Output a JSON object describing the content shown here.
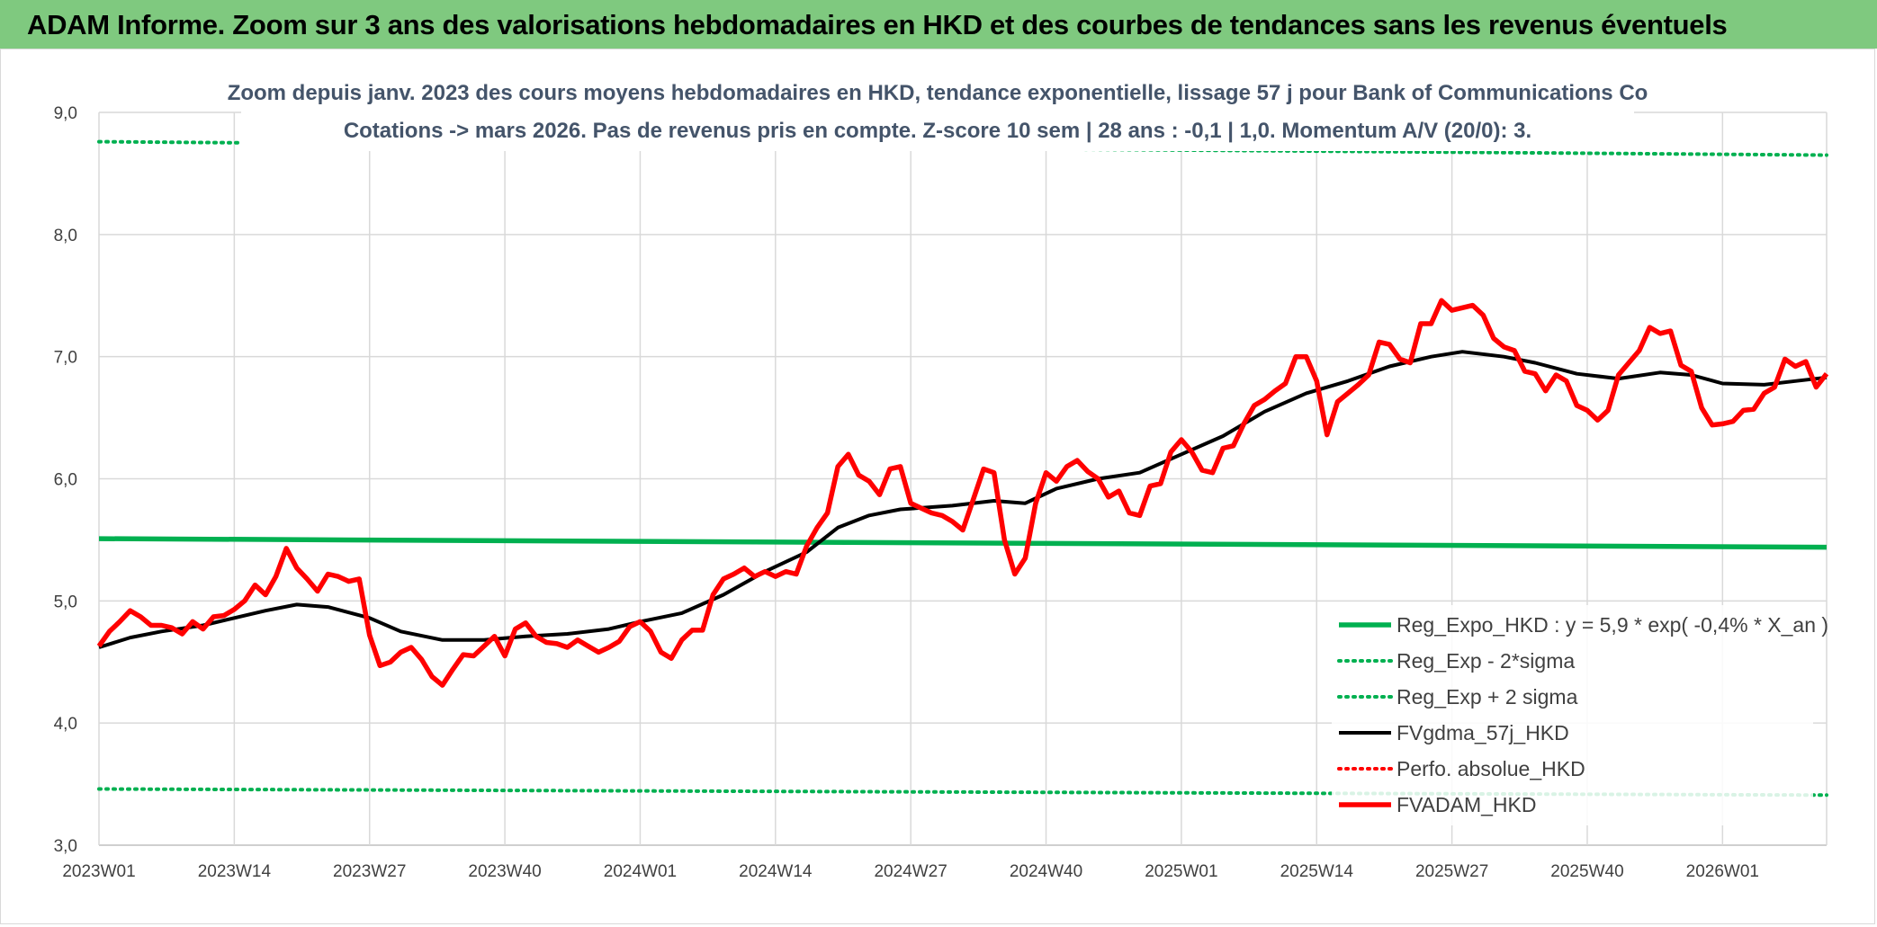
{
  "header": {
    "title": "ADAM Informe. Zoom sur 3 ans des valorisations hebdomadaires en HKD et des courbes de tendances sans les revenus éventuels"
  },
  "chart_data": {
    "type": "line",
    "title": "Zoom depuis janv. 2023 des cours moyens hebdomadaires en HKD, tendance exponentielle, lissage 57 j pour Bank of Communications Co",
    "subtitle": "Cotations -> mars 2026. Pas de revenus pris en compte. Z-score 10 sem | 28 ans : -0,1 | 1,0. Momentum A/V (20/0): 3.",
    "xlabel": "",
    "ylabel": "",
    "ylim": [
      3.0,
      9.0
    ],
    "y_ticks": [
      "3,0",
      "4,0",
      "5,0",
      "6,0",
      "7,0",
      "8,0",
      "9,0"
    ],
    "x_tick_labels": [
      "2023W01",
      "2023W14",
      "2023W27",
      "2023W40",
      "2024W01",
      "2024W14",
      "2024W27",
      "2024W40",
      "2025W01",
      "2025W14",
      "2025W27",
      "2025W40",
      "2026W01"
    ],
    "x_range_weeks": [
      0,
      166
    ],
    "grid": true,
    "legend_position": "bottom-right",
    "series": [
      {
        "name": "Reg_Expo_HKD : y = 5,9 * exp( -0,4% *  X_an )",
        "color": "#00b050",
        "style": "solid-thick",
        "points": [
          [
            0,
            5.51
          ],
          [
            166,
            5.44
          ]
        ]
      },
      {
        "name": "Reg_Exp - 2*sigma",
        "color": "#00b050",
        "style": "dotted",
        "points": [
          [
            0,
            3.46
          ],
          [
            166,
            3.41
          ]
        ]
      },
      {
        "name": "Reg_Exp + 2 sigma",
        "color": "#00b050",
        "style": "dotted",
        "points": [
          [
            0,
            8.76
          ],
          [
            166,
            8.65
          ]
        ]
      },
      {
        "name": "FVgdma_57j_HKD",
        "color": "#000000",
        "style": "solid",
        "points": [
          [
            0,
            4.62
          ],
          [
            3,
            4.7
          ],
          [
            6,
            4.75
          ],
          [
            10,
            4.8
          ],
          [
            13,
            4.86
          ],
          [
            16,
            4.92
          ],
          [
            19,
            4.97
          ],
          [
            22,
            4.95
          ],
          [
            26,
            4.86
          ],
          [
            29,
            4.75
          ],
          [
            33,
            4.68
          ],
          [
            37,
            4.68
          ],
          [
            41,
            4.71
          ],
          [
            45,
            4.73
          ],
          [
            49,
            4.77
          ],
          [
            52,
            4.83
          ],
          [
            56,
            4.9
          ],
          [
            60,
            5.05
          ],
          [
            64,
            5.24
          ],
          [
            68,
            5.4
          ],
          [
            71,
            5.6
          ],
          [
            74,
            5.7
          ],
          [
            77,
            5.75
          ],
          [
            82,
            5.78
          ],
          [
            86,
            5.82
          ],
          [
            89,
            5.8
          ],
          [
            92,
            5.92
          ],
          [
            96,
            6.0
          ],
          [
            100,
            6.05
          ],
          [
            104,
            6.2
          ],
          [
            108,
            6.35
          ],
          [
            112,
            6.55
          ],
          [
            116,
            6.7
          ],
          [
            120,
            6.8
          ],
          [
            124,
            6.92
          ],
          [
            128,
            7.0
          ],
          [
            131,
            7.04
          ],
          [
            135,
            7.0
          ],
          [
            138,
            6.95
          ],
          [
            142,
            6.86
          ],
          [
            146,
            6.82
          ],
          [
            150,
            6.87
          ],
          [
            153,
            6.85
          ],
          [
            156,
            6.78
          ],
          [
            160,
            6.77
          ],
          [
            163,
            6.8
          ],
          [
            166,
            6.83
          ]
        ]
      },
      {
        "name": "Perfo. absolue_HKD",
        "color": "#ff0000",
        "style": "dotted",
        "points": []
      },
      {
        "name": "FVADAM_HKD",
        "color": "#ff0000",
        "style": "solid-thick",
        "points": [
          [
            0,
            4.63
          ],
          [
            1,
            4.75
          ],
          [
            2,
            4.83
          ],
          [
            3,
            4.92
          ],
          [
            4,
            4.87
          ],
          [
            5,
            4.8
          ],
          [
            6,
            4.8
          ],
          [
            7,
            4.78
          ],
          [
            8,
            4.73
          ],
          [
            9,
            4.83
          ],
          [
            10,
            4.77
          ],
          [
            11,
            4.87
          ],
          [
            12,
            4.88
          ],
          [
            13,
            4.93
          ],
          [
            14,
            5.0
          ],
          [
            15,
            5.13
          ],
          [
            16,
            5.05
          ],
          [
            17,
            5.2
          ],
          [
            18,
            5.43
          ],
          [
            19,
            5.27
          ],
          [
            20,
            5.18
          ],
          [
            21,
            5.08
          ],
          [
            22,
            5.22
          ],
          [
            23,
            5.2
          ],
          [
            24,
            5.16
          ],
          [
            25,
            5.18
          ],
          [
            26,
            4.72
          ],
          [
            27,
            4.47
          ],
          [
            28,
            4.5
          ],
          [
            29,
            4.58
          ],
          [
            30,
            4.62
          ],
          [
            31,
            4.52
          ],
          [
            32,
            4.38
          ],
          [
            33,
            4.31
          ],
          [
            34,
            4.44
          ],
          [
            35,
            4.56
          ],
          [
            36,
            4.55
          ],
          [
            37,
            4.63
          ],
          [
            38,
            4.71
          ],
          [
            39,
            4.55
          ],
          [
            40,
            4.77
          ],
          [
            41,
            4.82
          ],
          [
            42,
            4.71
          ],
          [
            43,
            4.66
          ],
          [
            44,
            4.65
          ],
          [
            45,
            4.62
          ],
          [
            46,
            4.68
          ],
          [
            47,
            4.63
          ],
          [
            48,
            4.58
          ],
          [
            49,
            4.62
          ],
          [
            50,
            4.67
          ],
          [
            51,
            4.79
          ],
          [
            52,
            4.83
          ],
          [
            53,
            4.75
          ],
          [
            54,
            4.58
          ],
          [
            55,
            4.53
          ],
          [
            56,
            4.68
          ],
          [
            57,
            4.76
          ],
          [
            58,
            4.76
          ],
          [
            59,
            5.05
          ],
          [
            60,
            5.18
          ],
          [
            61,
            5.22
          ],
          [
            62,
            5.27
          ],
          [
            63,
            5.2
          ],
          [
            64,
            5.24
          ],
          [
            65,
            5.2
          ],
          [
            66,
            5.24
          ],
          [
            67,
            5.22
          ],
          [
            68,
            5.45
          ],
          [
            69,
            5.6
          ],
          [
            70,
            5.72
          ],
          [
            71,
            6.1
          ],
          [
            72,
            6.2
          ],
          [
            73,
            6.03
          ],
          [
            74,
            5.98
          ],
          [
            75,
            5.87
          ],
          [
            76,
            6.08
          ],
          [
            77,
            6.1
          ],
          [
            78,
            5.8
          ],
          [
            79,
            5.76
          ],
          [
            80,
            5.72
          ],
          [
            81,
            5.7
          ],
          [
            82,
            5.65
          ],
          [
            83,
            5.58
          ],
          [
            84,
            5.83
          ],
          [
            85,
            6.08
          ],
          [
            86,
            6.05
          ],
          [
            87,
            5.5
          ],
          [
            88,
            5.22
          ],
          [
            89,
            5.35
          ],
          [
            90,
            5.8
          ],
          [
            91,
            6.05
          ],
          [
            92,
            5.98
          ],
          [
            93,
            6.1
          ],
          [
            94,
            6.15
          ],
          [
            95,
            6.06
          ],
          [
            96,
            6.0
          ],
          [
            97,
            5.85
          ],
          [
            98,
            5.9
          ],
          [
            99,
            5.72
          ],
          [
            100,
            5.7
          ],
          [
            101,
            5.94
          ],
          [
            102,
            5.96
          ],
          [
            103,
            6.22
          ],
          [
            104,
            6.32
          ],
          [
            105,
            6.22
          ],
          [
            106,
            6.07
          ],
          [
            107,
            6.05
          ],
          [
            108,
            6.25
          ],
          [
            109,
            6.27
          ],
          [
            110,
            6.45
          ],
          [
            111,
            6.6
          ],
          [
            112,
            6.65
          ],
          [
            113,
            6.72
          ],
          [
            114,
            6.78
          ],
          [
            115,
            7.0
          ],
          [
            116,
            7.0
          ],
          [
            117,
            6.8
          ],
          [
            118,
            6.36
          ],
          [
            119,
            6.63
          ],
          [
            120,
            6.7
          ],
          [
            121,
            6.77
          ],
          [
            122,
            6.85
          ],
          [
            123,
            7.12
          ],
          [
            124,
            7.1
          ],
          [
            125,
            6.98
          ],
          [
            126,
            6.95
          ],
          [
            127,
            7.27
          ],
          [
            128,
            7.27
          ],
          [
            129,
            7.46
          ],
          [
            130,
            7.38
          ],
          [
            131,
            7.4
          ],
          [
            132,
            7.42
          ],
          [
            133,
            7.34
          ],
          [
            134,
            7.15
          ],
          [
            135,
            7.08
          ],
          [
            136,
            7.05
          ],
          [
            137,
            6.88
          ],
          [
            138,
            6.86
          ],
          [
            139,
            6.72
          ],
          [
            140,
            6.85
          ],
          [
            141,
            6.8
          ],
          [
            142,
            6.6
          ],
          [
            143,
            6.56
          ],
          [
            144,
            6.48
          ],
          [
            145,
            6.56
          ],
          [
            146,
            6.85
          ],
          [
            147,
            6.95
          ],
          [
            148,
            7.05
          ],
          [
            149,
            7.24
          ],
          [
            150,
            7.19
          ],
          [
            151,
            7.21
          ],
          [
            152,
            6.93
          ],
          [
            153,
            6.88
          ],
          [
            154,
            6.58
          ],
          [
            155,
            6.44
          ],
          [
            156,
            6.45
          ],
          [
            157,
            6.47
          ],
          [
            158,
            6.56
          ],
          [
            159,
            6.57
          ],
          [
            160,
            6.7
          ],
          [
            161,
            6.75
          ],
          [
            162,
            6.98
          ],
          [
            163,
            6.92
          ],
          [
            164,
            6.96
          ],
          [
            165,
            6.75
          ],
          [
            166,
            6.86
          ]
        ]
      }
    ]
  }
}
